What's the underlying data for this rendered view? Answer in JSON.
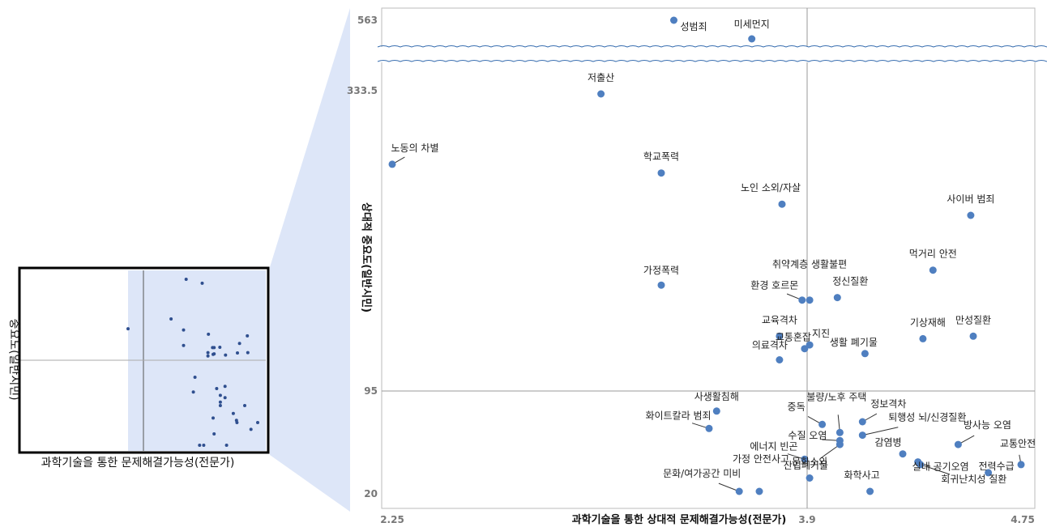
{
  "chart_data": {
    "type": "scatter",
    "xlabel": "과학기술을 통한 상대적 문제해결가능성(전문가)",
    "ylabel": "상대적 중요도(일반시민)",
    "x_ticks": [
      "2.25",
      "3.9",
      "4.75"
    ],
    "y_ticks": [
      "563",
      "333.5",
      "95",
      "20"
    ],
    "xlim": [
      2.25,
      4.75
    ],
    "reference_x": 3.9,
    "reference_y": 95,
    "y_axis_broken": true,
    "color": "#4f7fc0",
    "points": [
      {
        "label": "성범죄",
        "x": 3.37,
        "y": 563
      },
      {
        "label": "미세먼지",
        "x": 3.68,
        "y": 540
      },
      {
        "label": "저출산",
        "x": 3.08,
        "y": 333.5
      },
      {
        "label": "노동의 차별",
        "x": 2.25,
        "y": 277
      },
      {
        "label": "학교폭력",
        "x": 3.32,
        "y": 270
      },
      {
        "label": "노인 소외/자살",
        "x": 3.8,
        "y": 245
      },
      {
        "label": "사이버 범죄",
        "x": 4.55,
        "y": 236
      },
      {
        "label": "먹거리 안전",
        "x": 4.4,
        "y": 192
      },
      {
        "label": "가정폭력",
        "x": 3.32,
        "y": 180
      },
      {
        "label": "취약계층 생활불편",
        "x": 3.91,
        "y": 168
      },
      {
        "label": "정신질환",
        "x": 4.02,
        "y": 170
      },
      {
        "label": "환경 호르몬",
        "x": 3.88,
        "y": 168
      },
      {
        "label": "교육격차",
        "x": 3.79,
        "y": 139
      },
      {
        "label": "만성질환",
        "x": 4.56,
        "y": 139
      },
      {
        "label": "기상재해",
        "x": 4.36,
        "y": 137
      },
      {
        "label": "지진",
        "x": 3.91,
        "y": 132
      },
      {
        "label": "교통혼잡",
        "x": 3.89,
        "y": 129
      },
      {
        "label": "생활 폐기물",
        "x": 4.13,
        "y": 125
      },
      {
        "label": "의료격차",
        "x": 3.79,
        "y": 120
      },
      {
        "label": "사생활침해",
        "x": 3.54,
        "y": 80
      },
      {
        "label": "정보격차",
        "x": 4.12,
        "y": 72
      },
      {
        "label": "중독",
        "x": 3.96,
        "y": 70
      },
      {
        "label": "화이트칼라 범죄",
        "x": 3.51,
        "y": 67
      },
      {
        "label": "불량/노후 주택",
        "x": 4.03,
        "y": 64
      },
      {
        "label": "퇴행성 뇌/신경질환",
        "x": 4.12,
        "y": 62
      },
      {
        "label": "수질 오염",
        "x": 4.03,
        "y": 58
      },
      {
        "label": "방사능 오염",
        "x": 4.5,
        "y": 55
      },
      {
        "label": "감염병",
        "x": 4.28,
        "y": 48
      },
      {
        "label": "에너지 빈곤",
        "x": 3.89,
        "y": 44
      },
      {
        "label": "실내 공기오염",
        "x": 4.34,
        "y": 42
      },
      {
        "label": "회귀난치성 질환",
        "x": 4.35,
        "y": 40
      },
      {
        "label": "교통안전",
        "x": 4.75,
        "y": 40
      },
      {
        "label": "전력수급",
        "x": 4.62,
        "y": 34
      },
      {
        "label": "문화소외",
        "x": 3.91,
        "y": 30
      },
      {
        "label": "가정 안전사고",
        "x": 3.71,
        "y": 20
      },
      {
        "label": "문화/여가공간 미비",
        "x": 3.63,
        "y": 20
      },
      {
        "label": "화학사고",
        "x": 4.15,
        "y": 20
      },
      {
        "label": "산업폐기물",
        "x": 4.03,
        "y": 55
      }
    ],
    "inset": {
      "xlabel": "과학기술을 통한 문제해결가능성(전문가)",
      "ylabel": "중요도(일반시민)"
    }
  }
}
